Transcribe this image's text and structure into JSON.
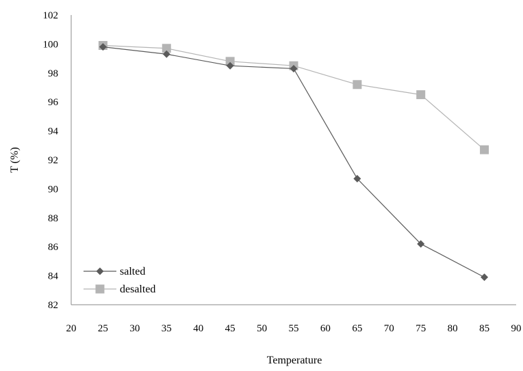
{
  "chart_data": {
    "type": "line",
    "title": "",
    "xlabel": "Temperature",
    "ylabel": "T (%)",
    "xlim": [
      20,
      90
    ],
    "ylim": [
      82,
      102
    ],
    "xticks": [
      "20",
      "25",
      "30",
      "35",
      "40",
      "45",
      "50",
      "55",
      "60",
      "65",
      "70",
      "75",
      "80",
      "85",
      "90"
    ],
    "yticks": [
      "82",
      "84",
      "86",
      "88",
      "90",
      "92",
      "94",
      "96",
      "98",
      "100",
      "102"
    ],
    "x": [
      25,
      35,
      45,
      55,
      65,
      75,
      85
    ],
    "series": [
      {
        "name": "salted",
        "marker": "diamond",
        "color": "#5a5a5a",
        "values": [
          99.8,
          99.3,
          98.5,
          98.3,
          90.7,
          86.2,
          83.9
        ]
      },
      {
        "name": "desalted",
        "marker": "square",
        "color": "#b4b4b4",
        "values": [
          99.9,
          99.7,
          98.8,
          98.5,
          97.2,
          96.5,
          92.7
        ]
      }
    ],
    "grid": false,
    "legend": "bottom-left"
  }
}
